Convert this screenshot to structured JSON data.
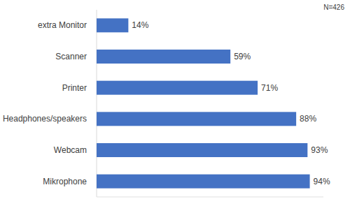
{
  "chart_data": {
    "type": "bar",
    "orientation": "horizontal",
    "categories": [
      "extra Monitor",
      "Scanner",
      "Printer",
      "Headphones/speakers",
      "Webcam",
      "Mikrophone"
    ],
    "values": [
      14,
      59,
      71,
      88,
      93,
      94
    ],
    "value_labels": [
      "14%",
      "59%",
      "71%",
      "88%",
      "93%",
      "94%"
    ],
    "color": "#4472c4",
    "xlim": [
      0,
      100
    ],
    "data_labels": true,
    "tick_labels": "y",
    "annotations": [
      "N=426"
    ]
  }
}
